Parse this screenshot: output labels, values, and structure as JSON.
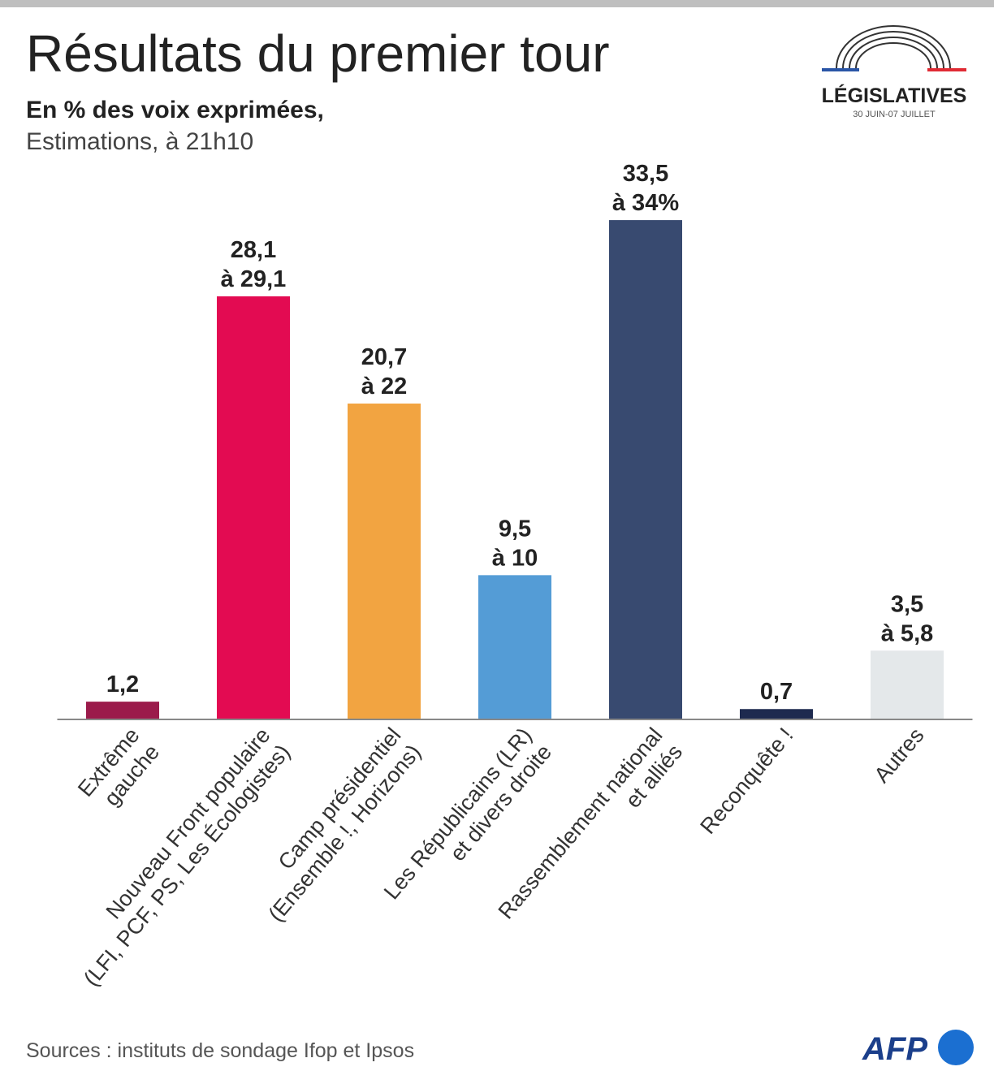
{
  "chart_data": {
    "type": "bar",
    "title": "Résultats du premier tour",
    "subtitle": "En % des voix exprimées,",
    "note": "Estimations, à 21h10",
    "logo_title": "LÉGISLATIVES",
    "logo_dates": "30 JUIN-07 JUILLET",
    "source": "Sources : instituts de sondage Ifop et Ipsos",
    "credit": "AFP",
    "categories": [
      "Extrême\ngauche",
      "Nouveau Front populaire\n(LFI, PCF, PS, Les Écologistes)",
      "Camp présidentiel\n(Ensemble !, Horizons)",
      "Les Républicains (LR)\net divers droite",
      "Rassemblement national\net alliés",
      "Reconquête !",
      "Autres"
    ],
    "values": [
      1.2,
      28.6,
      21.35,
      9.75,
      33.75,
      0.7,
      4.65
    ],
    "value_labels": [
      "1,2",
      "28,1 à 29,1",
      "20,7 à 22",
      "9,5 à 10",
      "33,5 à 34%",
      "0,7",
      "3,5 à 5,8"
    ],
    "colors": [
      "#9b1b4b",
      "#e30b52",
      "#f2a441",
      "#549cd6",
      "#384a70",
      "#1e2a4f",
      "#e4e8ea"
    ],
    "ylim": [
      0,
      40
    ]
  }
}
